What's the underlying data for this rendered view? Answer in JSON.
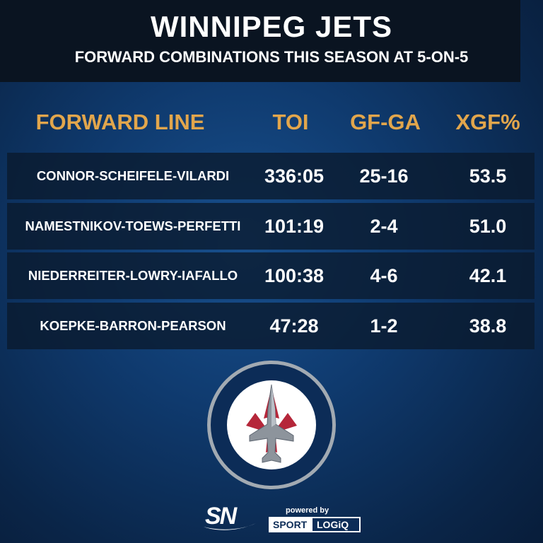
{
  "header": {
    "title": "WINNIPEG JETS",
    "subtitle": "FORWARD COMBINATIONS THIS SEASON AT 5-ON-5"
  },
  "columns": {
    "line": "FORWARD LINE",
    "toi": "TOI",
    "gfga": "GF-GA",
    "xgf": "XGF%"
  },
  "rows": [
    {
      "line": "CONNOR-SCHEIFELE-VILARDI",
      "toi": "336:05",
      "gfga": "25-16",
      "xgf": "53.5"
    },
    {
      "line": "NAMESTNIKOV-TOEWS-PERFETTI",
      "toi": "101:19",
      "gfga": "2-4",
      "xgf": "51.0"
    },
    {
      "line": "NIEDERREITER-LOWRY-IAFALLO",
      "toi": "100:38",
      "gfga": "4-6",
      "xgf": "42.1"
    },
    {
      "line": "KOEPKE-BARRON-PEARSON",
      "toi": "47:28",
      "gfga": "1-2",
      "xgf": "38.8"
    }
  ],
  "footer": {
    "brand": "SN",
    "powered_by": "powered by",
    "partner_part1": "SPORT",
    "partner_part2": "LOGiQ"
  },
  "colors": {
    "accent": "#e2a64c",
    "header_bg": "#0a1421",
    "jets_navy": "#0c2c57",
    "jets_red": "#b5273a",
    "jets_silver": "#a2aab2"
  },
  "icons": [
    "winnipeg-jets-logo",
    "sportsnet-logo",
    "sportlogiq-logo"
  ]
}
